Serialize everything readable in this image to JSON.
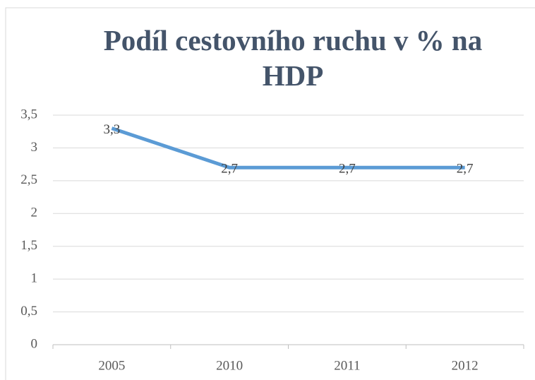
{
  "chart_data": {
    "type": "line",
    "title": "Podíl cestovního ruchu v % na HDP",
    "categories": [
      "2005",
      "2010",
      "2011",
      "2012"
    ],
    "series": [
      {
        "name": "Podíl cestovního ruchu v % na HDP",
        "color": "#5b9bd5",
        "values": [
          3.3,
          2.7,
          2.7,
          2.7
        ],
        "value_labels": [
          "3,3",
          "2,7",
          "2,7",
          "2,7"
        ]
      }
    ],
    "ylim": [
      0,
      3.5
    ],
    "yticks": [
      0,
      {
        "value": 0.5,
        "label": "0,5"
      },
      1,
      {
        "value": 1.5,
        "label": "1,5"
      },
      2,
      {
        "value": 2.5,
        "label": "2,5"
      },
      3,
      {
        "value": 3.5,
        "label": "3,5"
      }
    ],
    "grid": true
  }
}
